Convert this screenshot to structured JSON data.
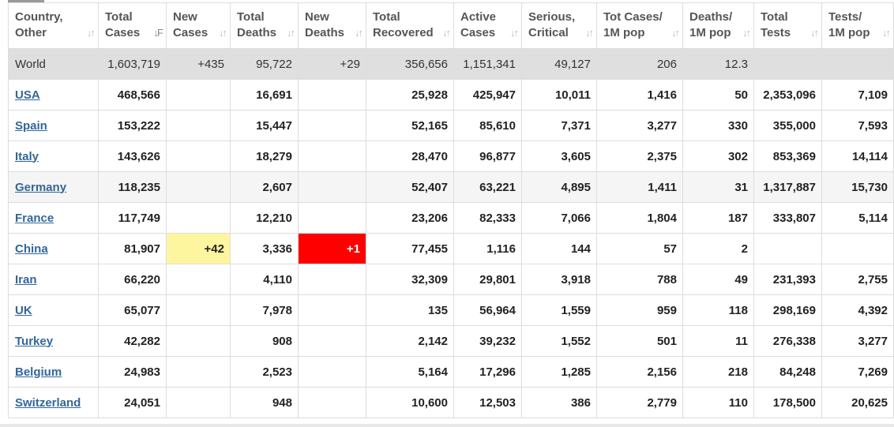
{
  "columns": [
    {
      "label": "Country,\nOther",
      "sort_icon": "↓↑"
    },
    {
      "label": "Total\nCases",
      "sort_icon": "↓F",
      "active": true
    },
    {
      "label": "New\nCases",
      "sort_icon": "↓↑"
    },
    {
      "label": "Total\nDeaths",
      "sort_icon": "↓↑"
    },
    {
      "label": "New\nDeaths",
      "sort_icon": "↓↑"
    },
    {
      "label": "Total\nRecovered",
      "sort_icon": "↓↑"
    },
    {
      "label": "Active\nCases",
      "sort_icon": "↓↑"
    },
    {
      "label": "Serious,\nCritical",
      "sort_icon": "↓↑"
    },
    {
      "label": "Tot Cases/\n1M pop",
      "sort_icon": "↓↑"
    },
    {
      "label": "Deaths/\n1M pop",
      "sort_icon": "↓↑"
    },
    {
      "label": "Total\nTests",
      "sort_icon": "↓↑"
    },
    {
      "label": "Tests/\n1M pop",
      "sort_icon": "↓↑"
    }
  ],
  "world": {
    "country": "World",
    "total_cases": "1,603,719",
    "new_cases": "+435",
    "total_deaths": "95,722",
    "new_deaths": "+29",
    "total_recovered": "356,656",
    "active_cases": "1,151,341",
    "serious": "49,127",
    "cases_per_m": "206",
    "deaths_per_m": "12.3",
    "total_tests": "",
    "tests_per_m": ""
  },
  "rows": [
    {
      "country": "USA",
      "total_cases": "468,566",
      "new_cases": "",
      "total_deaths": "16,691",
      "new_deaths": "",
      "total_recovered": "25,928",
      "active_cases": "425,947",
      "serious": "10,011",
      "cases_per_m": "1,416",
      "deaths_per_m": "50",
      "total_tests": "2,353,096",
      "tests_per_m": "7,109"
    },
    {
      "country": "Spain",
      "total_cases": "153,222",
      "new_cases": "",
      "total_deaths": "15,447",
      "new_deaths": "",
      "total_recovered": "52,165",
      "active_cases": "85,610",
      "serious": "7,371",
      "cases_per_m": "3,277",
      "deaths_per_m": "330",
      "total_tests": "355,000",
      "tests_per_m": "7,593"
    },
    {
      "country": "Italy",
      "total_cases": "143,626",
      "new_cases": "",
      "total_deaths": "18,279",
      "new_deaths": "",
      "total_recovered": "28,470",
      "active_cases": "96,877",
      "serious": "3,605",
      "cases_per_m": "2,375",
      "deaths_per_m": "302",
      "total_tests": "853,369",
      "tests_per_m": "14,114"
    },
    {
      "country": "Germany",
      "total_cases": "118,235",
      "new_cases": "",
      "total_deaths": "2,607",
      "new_deaths": "",
      "total_recovered": "52,407",
      "active_cases": "63,221",
      "serious": "4,895",
      "cases_per_m": "1,411",
      "deaths_per_m": "31",
      "total_tests": "1,317,887",
      "tests_per_m": "15,730"
    },
    {
      "country": "France",
      "total_cases": "117,749",
      "new_cases": "",
      "total_deaths": "12,210",
      "new_deaths": "",
      "total_recovered": "23,206",
      "active_cases": "82,333",
      "serious": "7,066",
      "cases_per_m": "1,804",
      "deaths_per_m": "187",
      "total_tests": "333,807",
      "tests_per_m": "5,114"
    },
    {
      "country": "China",
      "total_cases": "81,907",
      "new_cases": "+42",
      "total_deaths": "3,336",
      "new_deaths": "+1",
      "total_recovered": "77,455",
      "active_cases": "1,116",
      "serious": "144",
      "cases_per_m": "57",
      "deaths_per_m": "2",
      "total_tests": "",
      "tests_per_m": ""
    },
    {
      "country": "Iran",
      "total_cases": "66,220",
      "new_cases": "",
      "total_deaths": "4,110",
      "new_deaths": "",
      "total_recovered": "32,309",
      "active_cases": "29,801",
      "serious": "3,918",
      "cases_per_m": "788",
      "deaths_per_m": "49",
      "total_tests": "231,393",
      "tests_per_m": "2,755"
    },
    {
      "country": "UK",
      "total_cases": "65,077",
      "new_cases": "",
      "total_deaths": "7,978",
      "new_deaths": "",
      "total_recovered": "135",
      "active_cases": "56,964",
      "serious": "1,559",
      "cases_per_m": "959",
      "deaths_per_m": "118",
      "total_tests": "298,169",
      "tests_per_m": "4,392"
    },
    {
      "country": "Turkey",
      "total_cases": "42,282",
      "new_cases": "",
      "total_deaths": "908",
      "new_deaths": "",
      "total_recovered": "2,142",
      "active_cases": "39,232",
      "serious": "1,552",
      "cases_per_m": "501",
      "deaths_per_m": "11",
      "total_tests": "276,338",
      "tests_per_m": "3,277"
    },
    {
      "country": "Belgium",
      "total_cases": "24,983",
      "new_cases": "",
      "total_deaths": "2,523",
      "new_deaths": "",
      "total_recovered": "5,164",
      "active_cases": "17,296",
      "serious": "1,285",
      "cases_per_m": "2,156",
      "deaths_per_m": "218",
      "total_tests": "84,248",
      "tests_per_m": "7,269"
    },
    {
      "country": "Switzerland",
      "total_cases": "24,051",
      "new_cases": "",
      "total_deaths": "948",
      "new_deaths": "",
      "total_recovered": "10,600",
      "active_cases": "12,503",
      "serious": "386",
      "cases_per_m": "2,779",
      "deaths_per_m": "110",
      "total_tests": "178,500",
      "tests_per_m": "20,625"
    }
  ],
  "colors": {
    "link": "#336699",
    "world_row_bg": "#dfdfdf",
    "new_cases_highlight": "#fdf69f",
    "new_deaths_highlight": "#ff0000"
  }
}
